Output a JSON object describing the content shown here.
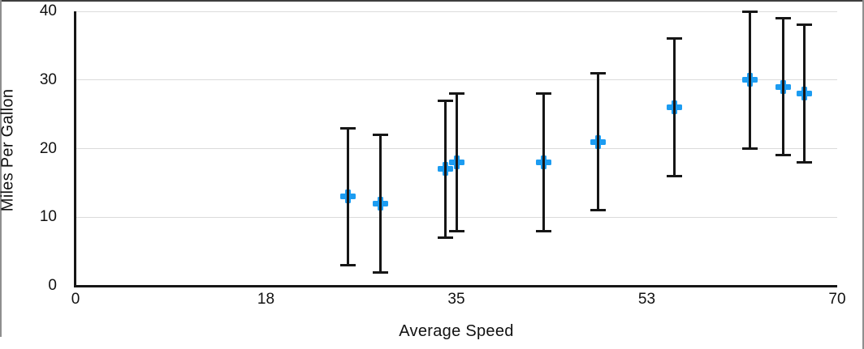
{
  "figure": {
    "x_axis_title": "Average Speed",
    "y_axis_title": "Miles Per Gallon"
  },
  "chart_data": {
    "type": "scatter",
    "title": "",
    "xlabel": "Average Speed",
    "ylabel": "Miles Per Gallon",
    "xlim": [
      0,
      70
    ],
    "ylim": [
      0,
      40
    ],
    "grid": "horizontal",
    "legend": "none",
    "x_ticks": {
      "values": [
        0,
        17.5,
        35,
        52.5,
        70
      ],
      "labels": [
        "0",
        "18",
        "35",
        "53",
        "70"
      ]
    },
    "y_ticks": {
      "values": [
        0,
        10,
        20,
        30,
        40
      ],
      "labels": [
        "0",
        "10",
        "20",
        "30",
        "40"
      ]
    },
    "series": [
      {
        "name": "Miles Per Gallon",
        "marker": "plus",
        "error_bars": "symmetric-y",
        "points": [
          {
            "x": 25,
            "y": 13,
            "err": 10
          },
          {
            "x": 28,
            "y": 12,
            "err": 10
          },
          {
            "x": 34,
            "y": 17,
            "err": 10
          },
          {
            "x": 35,
            "y": 18,
            "err": 10
          },
          {
            "x": 43,
            "y": 18,
            "err": 10
          },
          {
            "x": 48,
            "y": 21,
            "err": 10
          },
          {
            "x": 55,
            "y": 26,
            "err": 10
          },
          {
            "x": 62,
            "y": 30,
            "err": 10
          },
          {
            "x": 65,
            "y": 29,
            "err": 10
          },
          {
            "x": 67,
            "y": 28,
            "err": 10
          }
        ]
      }
    ],
    "colors": {
      "marker": "#1c9cf1",
      "error_bar": "#161616",
      "axis": "#161616",
      "gridline": "#dbdbdb",
      "tick_text": "#111111"
    }
  }
}
